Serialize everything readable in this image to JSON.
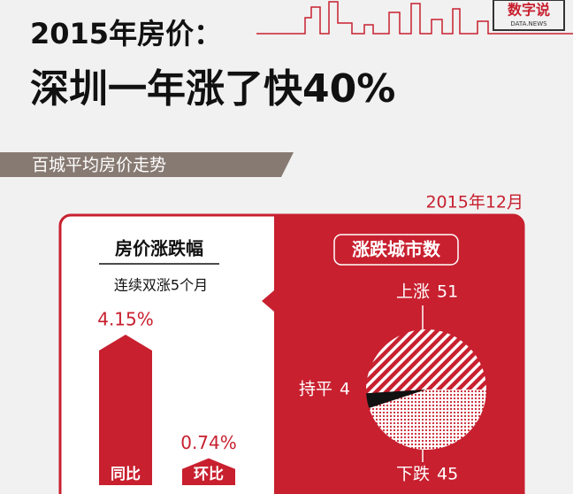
{
  "header": {
    "title_line1": "2015年房价：",
    "title_line2": "深圳一年涨了快40%",
    "logo": "数字说",
    "logo_sub": "DATA.NEWS"
  },
  "section": {
    "title": "百城平均房价走势",
    "date": "2015年12月"
  },
  "chart_data": [
    {
      "type": "bar",
      "title": "房价涨跌幅",
      "subtitle": "连续双涨5个月",
      "categories": [
        "同比",
        "环比"
      ],
      "values": [
        4.15,
        0.74
      ],
      "value_labels": [
        "4.15%",
        "0.74%"
      ],
      "color": "#c8202f"
    },
    {
      "type": "pie",
      "title": "涨跌城市数",
      "categories": [
        "上涨",
        "持平",
        "下跌"
      ],
      "values": [
        51,
        4,
        45
      ],
      "colors": [
        "hatch",
        "#111111",
        "dots"
      ]
    }
  ]
}
